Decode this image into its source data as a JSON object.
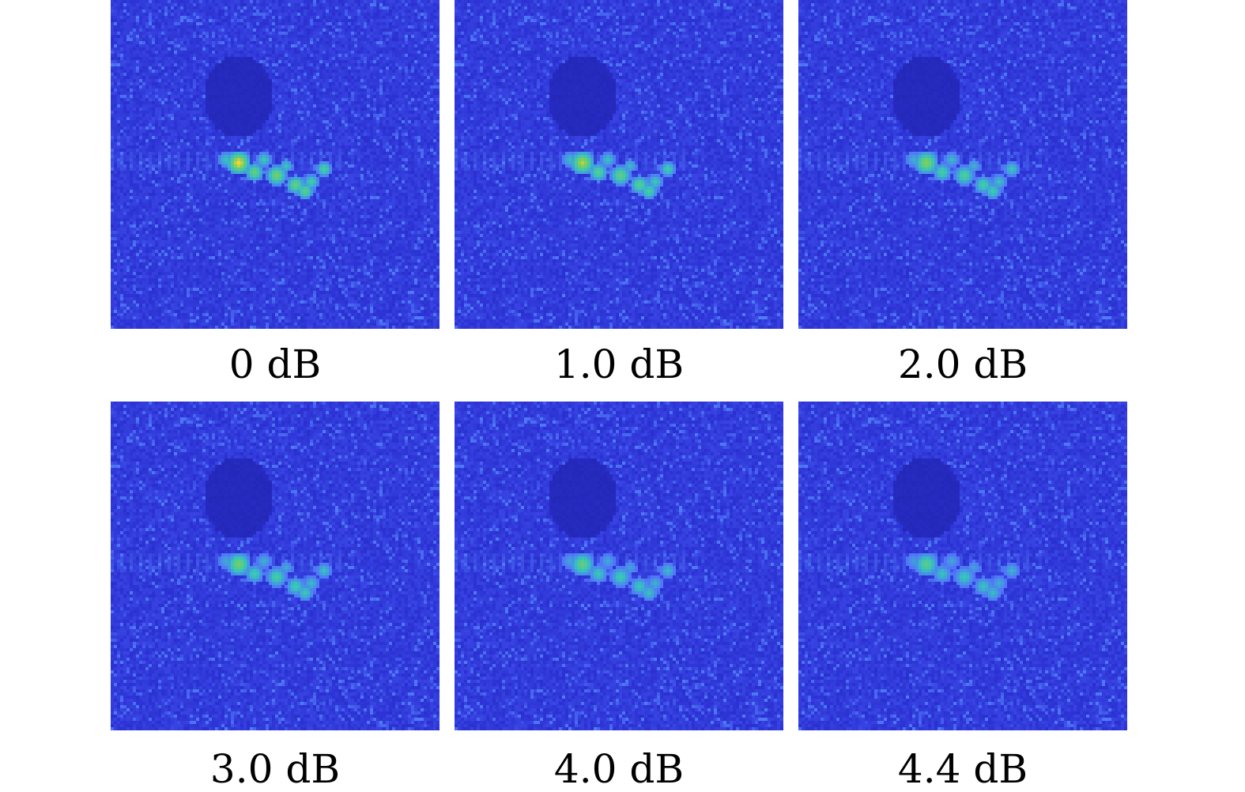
{
  "panels": [
    {
      "caption": "0 dB",
      "target_intensity": 1.0
    },
    {
      "caption": "1.0 dB",
      "target_intensity": 0.9
    },
    {
      "caption": "2.0 dB",
      "target_intensity": 0.8
    },
    {
      "caption": "3.0 dB",
      "target_intensity": 0.75
    },
    {
      "caption": "4.0 dB",
      "target_intensity": 0.68
    },
    {
      "caption": "4.4 dB",
      "target_intensity": 0.64
    }
  ],
  "colors": {
    "background_low": "#2a2fd0",
    "background_mid": "#3a48e6",
    "speckle_high": "#4f7cf5",
    "shadow": "#2428b8",
    "target_cyan": "#35c3c0",
    "target_green": "#7ad15a",
    "target_peak": "#f7d23a"
  }
}
